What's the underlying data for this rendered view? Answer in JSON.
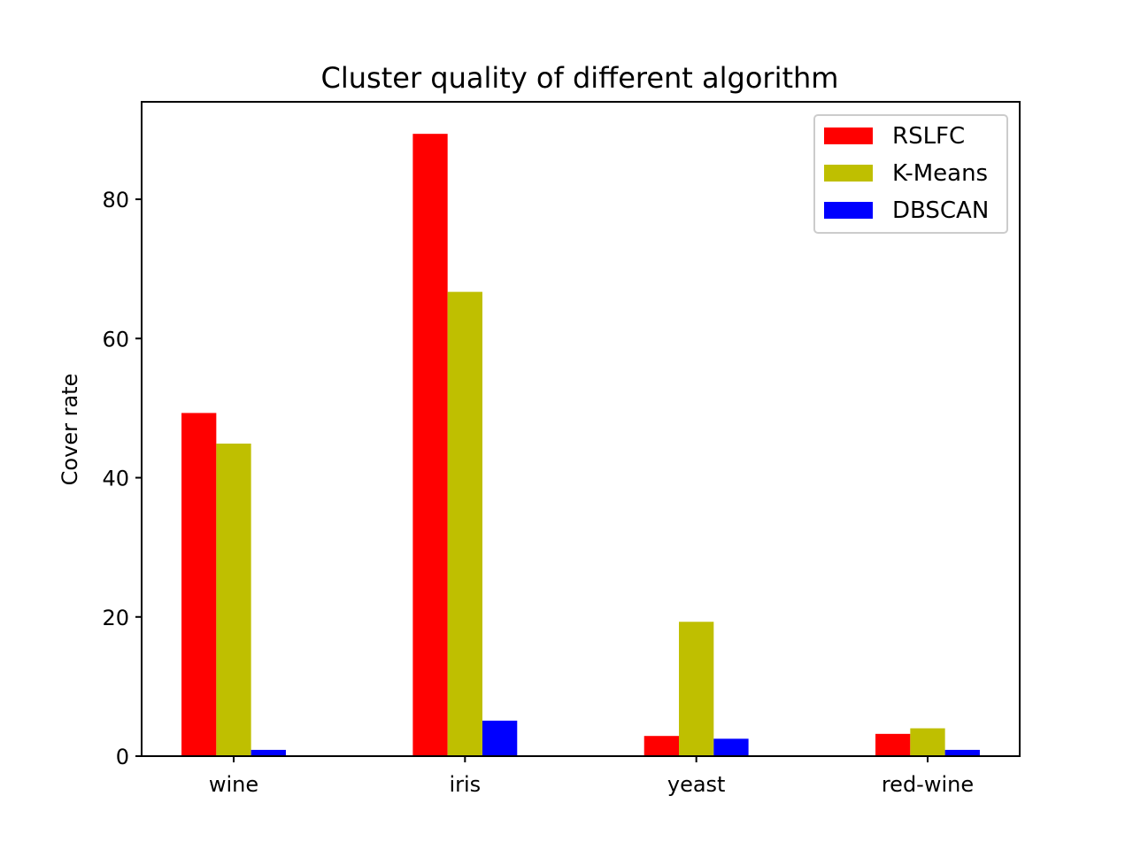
{
  "chart_data": {
    "type": "bar",
    "title": "Cluster quality of different algorithm",
    "xlabel": "",
    "ylabel": "Cover rate",
    "categories": [
      "wine",
      "iris",
      "yeast",
      "red-wine"
    ],
    "series": [
      {
        "name": "RSLFC",
        "color": "#ff0000",
        "values": [
          49.3,
          89.4,
          2.9,
          3.2
        ]
      },
      {
        "name": "K-Means",
        "color": "#bfbf00",
        "values": [
          44.9,
          66.7,
          19.3,
          4.0
        ]
      },
      {
        "name": "DBSCAN",
        "color": "#0000ff",
        "values": [
          0.9,
          5.1,
          2.5,
          0.9
        ]
      }
    ],
    "ylim": [
      0,
      94
    ],
    "yticks": [
      0,
      20,
      40,
      60,
      80
    ],
    "grid": false,
    "legend_position": "top-right"
  }
}
